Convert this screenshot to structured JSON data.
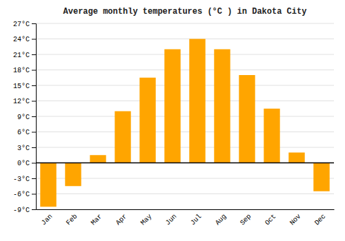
{
  "chart_data": {
    "type": "bar",
    "title": "Average monthly temperatures (°C ) in Dakota City",
    "categories": [
      "Jan",
      "Feb",
      "Mar",
      "Apr",
      "May",
      "Jun",
      "Jul",
      "Aug",
      "Sep",
      "Oct",
      "Nov",
      "Dec"
    ],
    "values": [
      -8.5,
      -4.5,
      1.5,
      10.0,
      16.5,
      22.0,
      24.0,
      22.0,
      17.0,
      10.5,
      2.0,
      -5.5
    ],
    "color": "#FFA500",
    "ylim": [
      -9,
      27
    ],
    "yticks": [
      {
        "value": -9,
        "label": "-9°C"
      },
      {
        "value": -6,
        "label": "-6°C"
      },
      {
        "value": -3,
        "label": "-3°C"
      },
      {
        "value": 0,
        "label": "0°C"
      },
      {
        "value": 3,
        "label": "3°C"
      },
      {
        "value": 6,
        "label": "6°C"
      },
      {
        "value": 9,
        "label": "9°C"
      },
      {
        "value": 12,
        "label": "12°C"
      },
      {
        "value": 15,
        "label": "15°C"
      },
      {
        "value": 18,
        "label": "18°C"
      },
      {
        "value": 21,
        "label": "21°C"
      },
      {
        "value": 24,
        "label": "24°C"
      },
      {
        "value": 27,
        "label": "27°C"
      }
    ],
    "grid": true
  }
}
